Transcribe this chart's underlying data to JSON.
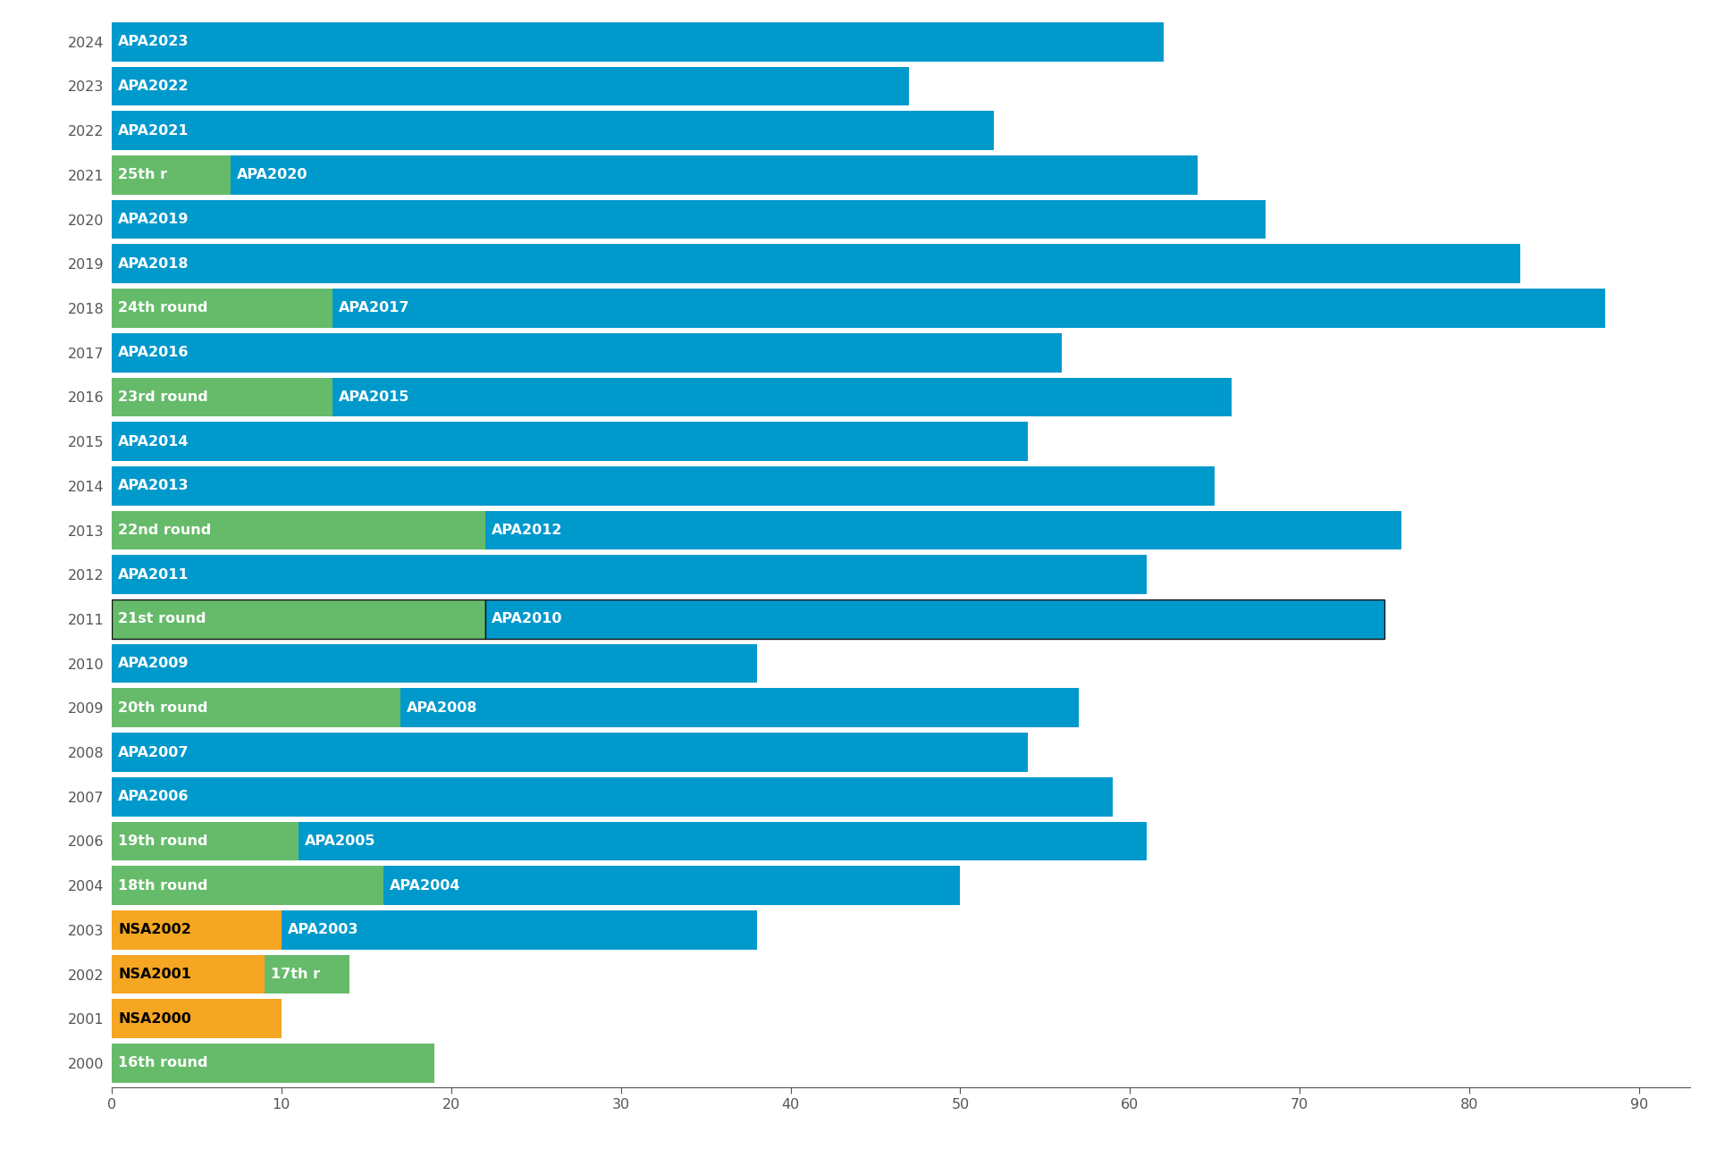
{
  "bars": [
    {
      "year": 2024,
      "segments": [
        {
          "label": "APA2023",
          "value": 62,
          "color": "#0099CC",
          "text_color": "white"
        }
      ]
    },
    {
      "year": 2023,
      "segments": [
        {
          "label": "APA2022",
          "value": 47,
          "color": "#0099CC",
          "text_color": "white"
        }
      ]
    },
    {
      "year": 2022,
      "segments": [
        {
          "label": "APA2021",
          "value": 52,
          "color": "#0099CC",
          "text_color": "white"
        }
      ]
    },
    {
      "year": 2021,
      "segments": [
        {
          "label": "25th r",
          "value": 7,
          "color": "#66BB6A",
          "text_color": "white"
        },
        {
          "label": "APA2020",
          "value": 57,
          "color": "#0099CC",
          "text_color": "white"
        }
      ]
    },
    {
      "year": 2020,
      "segments": [
        {
          "label": "APA2019",
          "value": 68,
          "color": "#0099CC",
          "text_color": "white"
        }
      ]
    },
    {
      "year": 2019,
      "segments": [
        {
          "label": "APA2018",
          "value": 83,
          "color": "#0099CC",
          "text_color": "white"
        }
      ]
    },
    {
      "year": 2018,
      "segments": [
        {
          "label": "24th round",
          "value": 13,
          "color": "#66BB6A",
          "text_color": "white"
        },
        {
          "label": "APA2017",
          "value": 75,
          "color": "#0099CC",
          "text_color": "white"
        }
      ]
    },
    {
      "year": 2017,
      "segments": [
        {
          "label": "APA2016",
          "value": 56,
          "color": "#0099CC",
          "text_color": "white"
        }
      ]
    },
    {
      "year": 2016,
      "segments": [
        {
          "label": "23rd round",
          "value": 13,
          "color": "#66BB6A",
          "text_color": "white"
        },
        {
          "label": "APA2015",
          "value": 53,
          "color": "#0099CC",
          "text_color": "white"
        }
      ]
    },
    {
      "year": 2015,
      "segments": [
        {
          "label": "APA2014",
          "value": 54,
          "color": "#0099CC",
          "text_color": "white"
        }
      ]
    },
    {
      "year": 2014,
      "segments": [
        {
          "label": "APA2013",
          "value": 65,
          "color": "#0099CC",
          "text_color": "white"
        }
      ]
    },
    {
      "year": 2013,
      "segments": [
        {
          "label": "22nd round",
          "value": 22,
          "color": "#66BB6A",
          "text_color": "white"
        },
        {
          "label": "APA2012",
          "value": 54,
          "color": "#0099CC",
          "text_color": "white"
        }
      ]
    },
    {
      "year": 2012,
      "segments": [
        {
          "label": "APA2011",
          "value": 61,
          "color": "#0099CC",
          "text_color": "white"
        }
      ]
    },
    {
      "year": 2011,
      "segments": [
        {
          "label": "21st round",
          "value": 22,
          "color": "#66BB6A",
          "text_color": "white"
        },
        {
          "label": "APA2010",
          "value": 53,
          "color": "#0099CC",
          "text_color": "white"
        }
      ],
      "border": true
    },
    {
      "year": 2010,
      "segments": [
        {
          "label": "APA2009",
          "value": 38,
          "color": "#0099CC",
          "text_color": "white"
        }
      ]
    },
    {
      "year": 2009,
      "segments": [
        {
          "label": "20th round",
          "value": 17,
          "color": "#66BB6A",
          "text_color": "white"
        },
        {
          "label": "APA2008",
          "value": 40,
          "color": "#0099CC",
          "text_color": "white"
        }
      ]
    },
    {
      "year": 2008,
      "segments": [
        {
          "label": "APA2007",
          "value": 54,
          "color": "#0099CC",
          "text_color": "white"
        }
      ]
    },
    {
      "year": 2007,
      "segments": [
        {
          "label": "APA2006",
          "value": 59,
          "color": "#0099CC",
          "text_color": "white"
        }
      ]
    },
    {
      "year": 2006,
      "segments": [
        {
          "label": "19th round",
          "value": 11,
          "color": "#66BB6A",
          "text_color": "white"
        },
        {
          "label": "APA2005",
          "value": 50,
          "color": "#0099CC",
          "text_color": "white"
        }
      ]
    },
    {
      "year": 2004,
      "segments": [
        {
          "label": "18th round",
          "value": 16,
          "color": "#66BB6A",
          "text_color": "white"
        },
        {
          "label": "APA2004",
          "value": 34,
          "color": "#0099CC",
          "text_color": "white"
        }
      ]
    },
    {
      "year": 2003,
      "segments": [
        {
          "label": "NSA2002",
          "value": 10,
          "color": "#F5A623",
          "text_color": "black"
        },
        {
          "label": "APA2003",
          "value": 28,
          "color": "#0099CC",
          "text_color": "white"
        }
      ]
    },
    {
      "year": 2002,
      "segments": [
        {
          "label": "NSA2001",
          "value": 9,
          "color": "#F5A623",
          "text_color": "black"
        },
        {
          "label": "17th r",
          "value": 5,
          "color": "#66BB6A",
          "text_color": "white"
        }
      ]
    },
    {
      "year": 2001,
      "segments": [
        {
          "label": "NSA2000",
          "value": 10,
          "color": "#F5A623",
          "text_color": "black"
        }
      ]
    },
    {
      "year": 2000,
      "segments": [
        {
          "label": "16th round",
          "value": 19,
          "color": "#66BB6A",
          "text_color": "white"
        }
      ]
    }
  ],
  "xlim": [
    0,
    93
  ],
  "xticks": [
    0,
    10,
    20,
    30,
    40,
    50,
    60,
    70,
    80,
    90
  ],
  "background_color": "#ffffff",
  "bar_height": 0.88,
  "label_fontsize": 11.5,
  "tick_fontsize": 11.5,
  "axis_color": "#555555",
  "figsize": [
    19.2,
    12.95
  ],
  "dpi": 100
}
